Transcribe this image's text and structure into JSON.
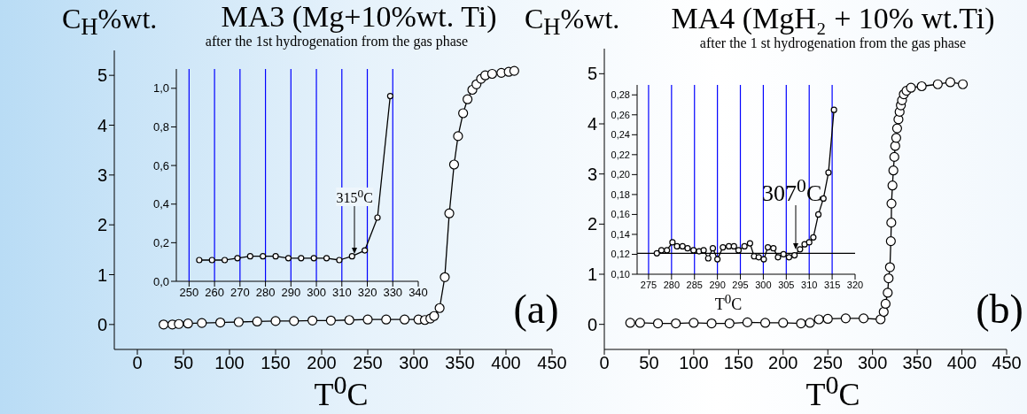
{
  "chart_data": [
    {
      "type": "line",
      "title": "MA3 (Mg+10%wt. Ti)",
      "subtitle": "after the 1st hydrogenation from the gas phase",
      "ylabel": "C$_{H}$%wt.",
      "xlabel": "T$^{0}$C",
      "annotations": [
        "(a)"
      ],
      "marker": "circle",
      "line_style": "solid",
      "series": [
        {
          "color": "#000000",
          "x": [
            28.5,
            38,
            45,
            55,
            70,
            90,
            110,
            130,
            150,
            170,
            190,
            210,
            230,
            250,
            270,
            290,
            305,
            312,
            318,
            322,
            328,
            333.6,
            338.5,
            343.7,
            348,
            353.5,
            358.3,
            363.5,
            368,
            373,
            377.5,
            385,
            395,
            403,
            409
          ],
          "values": [
            0,
            0,
            0.01,
            0.02,
            0.03,
            0.04,
            0.05,
            0.06,
            0.07,
            0.07,
            0.08,
            0.08,
            0.09,
            0.1,
            0.1,
            0.1,
            0.1,
            0.09,
            0.12,
            0.17,
            0.33,
            0.95,
            2.23,
            3.21,
            3.78,
            4.24,
            4.52,
            4.71,
            4.82,
            4.93,
            5.0,
            5.03,
            5.05,
            5.07,
            5.09
          ]
        }
      ],
      "xlim": [
        -25,
        450
      ],
      "xticks": [
        0,
        50,
        100,
        150,
        200,
        250,
        300,
        350,
        400,
        450
      ],
      "ylim": [
        -0.5,
        5.5
      ],
      "yticks": [
        0,
        1,
        2,
        3,
        4,
        5
      ]
    },
    {
      "type": "line",
      "annotations": [
        {
          "text": "315$^{0}$C",
          "x": 315,
          "y": 0.14
        }
      ],
      "marker": "circle",
      "line_style": "solid",
      "series": [
        {
          "color": "#000000",
          "x": [
            254,
            259,
            264,
            269,
            274,
            279,
            284,
            289,
            294,
            299,
            304,
            309,
            314,
            319,
            324,
            329
          ],
          "values": [
            0.11,
            0.11,
            0.11,
            0.12,
            0.13,
            0.13,
            0.13,
            0.12,
            0.12,
            0.12,
            0.12,
            0.11,
            0.13,
            0.16,
            0.33,
            0.96
          ]
        }
      ],
      "xlim": [
        245,
        340
      ],
      "xticks": [
        250,
        260,
        270,
        280,
        290,
        300,
        310,
        320,
        330,
        340
      ],
      "ylim": [
        0,
        1.1
      ],
      "yticks": [
        {
          "value": 0,
          "label": "0,0"
        },
        {
          "value": 0.2,
          "label": "0,2"
        },
        {
          "value": 0.4,
          "label": "0,4"
        },
        {
          "value": 0.6,
          "label": "0,6"
        },
        {
          "value": 0.8,
          "label": "0,8"
        },
        {
          "value": 1,
          "label": "1,0"
        }
      ],
      "ref_lines": [
        {
          "axis": "x",
          "value": 250,
          "color": "#0000ff"
        },
        {
          "axis": "x",
          "value": 260,
          "color": "#0000ff"
        },
        {
          "axis": "x",
          "value": 270,
          "color": "#0000ff"
        },
        {
          "axis": "x",
          "value": 280,
          "color": "#0000ff"
        },
        {
          "axis": "x",
          "value": 290,
          "color": "#0000ff"
        },
        {
          "axis": "x",
          "value": 300,
          "color": "#0000ff"
        },
        {
          "axis": "x",
          "value": 310,
          "color": "#0000ff"
        },
        {
          "axis": "x",
          "value": 320,
          "color": "#0000ff"
        },
        {
          "axis": "x",
          "value": 330,
          "color": "#0000ff"
        }
      ]
    },
    {
      "type": "line",
      "title": "MA4 (MgH₂ + 10% wt.Ti)",
      "subtitle": "after the 1 st hydrogenation from the gas phase",
      "ylabel": "C$_{H}$%wt.",
      "xlabel": "T$^{0}$C",
      "annotations": [
        "(b)"
      ],
      "marker": "circle",
      "line_style": "solid",
      "series": [
        {
          "color": "#000000",
          "x": [
            29,
            40,
            60,
            80,
            100,
            120,
            140,
            160,
            180,
            200,
            220,
            230,
            240,
            250,
            270,
            290,
            309,
            312.5,
            314.6,
            317,
            318,
            319.5,
            320.5,
            321,
            321.2,
            322.3,
            323.3,
            324.4,
            325.4,
            326.5,
            327.5,
            329,
            330.3,
            331.7,
            333,
            335,
            338,
            343,
            355,
            373,
            387,
            401
          ],
          "values": [
            0.03,
            0.03,
            0.02,
            0.02,
            0.03,
            0.02,
            0.02,
            0.04,
            0.03,
            0.03,
            0.02,
            0.03,
            0.1,
            0.11,
            0.12,
            0.12,
            0.1,
            0.25,
            0.41,
            0.63,
            0.92,
            1.14,
            1.66,
            2.03,
            2.41,
            2.77,
            3.07,
            3.34,
            3.56,
            3.72,
            3.91,
            4.09,
            4.24,
            4.37,
            4.47,
            4.59,
            4.66,
            4.72,
            4.75,
            4.79,
            4.83,
            4.79
          ]
        }
      ],
      "xlim": [
        0,
        450
      ],
      "xticks": [
        0,
        50,
        100,
        150,
        200,
        250,
        300,
        350,
        400,
        450
      ],
      "ylim": [
        -0.5,
        5.5
      ],
      "yticks": [
        0,
        1,
        2,
        3,
        4,
        5
      ]
    },
    {
      "type": "line",
      "xlabel": "T$^{0}$C",
      "annotations": [
        {
          "text": "307$^{0}$C",
          "x": 307,
          "y": 0.125
        }
      ],
      "marker": "circle",
      "line_style": "solid",
      "series": [
        {
          "color": "#000000",
          "x": [
            276.8,
            277.8,
            279,
            280.2,
            281.2,
            282.4,
            283.5,
            284.8,
            286,
            287,
            288,
            289,
            290,
            291.2,
            292.5,
            293.6,
            294.6,
            295.9,
            297.1,
            298,
            299,
            300.1,
            301,
            302.2,
            303.2,
            304.4,
            305.6,
            306.8,
            308,
            309,
            310,
            310.9,
            312,
            313.1,
            314.2,
            315.4
          ],
          "values": [
            0.121,
            0.124,
            0.124,
            0.132,
            0.128,
            0.128,
            0.126,
            0.124,
            0.123,
            0.124,
            0.116,
            0.126,
            0.115,
            0.127,
            0.128,
            0.128,
            0.124,
            0.128,
            0.131,
            0.118,
            0.117,
            0.115,
            0.127,
            0.126,
            0.117,
            0.12,
            0.117,
            0.119,
            0.125,
            0.13,
            0.132,
            0.137,
            0.16,
            0.176,
            0.202,
            0.265
          ]
        }
      ],
      "xlim": [
        272.5,
        320
      ],
      "xticks": [
        275,
        280,
        285,
        290,
        295,
        300,
        305,
        310,
        315,
        320
      ],
      "ylim": [
        0.1,
        0.29
      ],
      "yticks": [
        {
          "value": 0.1,
          "label": "0,10"
        },
        {
          "value": 0.12,
          "label": "0,12"
        },
        {
          "value": 0.14,
          "label": "0,14"
        },
        {
          "value": 0.16,
          "label": "0,16"
        },
        {
          "value": 0.18,
          "label": "0,18"
        },
        {
          "value": 0.2,
          "label": "0,20"
        },
        {
          "value": 0.22,
          "label": "0,22"
        },
        {
          "value": 0.24,
          "label": "0,24"
        },
        {
          "value": 0.26,
          "label": "0,26"
        },
        {
          "value": 0.28,
          "label": "0,28"
        }
      ],
      "ref_lines": [
        {
          "axis": "x",
          "value": 275,
          "color": "#0000ff"
        },
        {
          "axis": "x",
          "value": 280,
          "color": "#0000ff"
        },
        {
          "axis": "x",
          "value": 285,
          "color": "#0000ff"
        },
        {
          "axis": "x",
          "value": 290,
          "color": "#0000ff"
        },
        {
          "axis": "x",
          "value": 295,
          "color": "#0000ff"
        },
        {
          "axis": "x",
          "value": 300,
          "color": "#0000ff"
        },
        {
          "axis": "x",
          "value": 305,
          "color": "#0000ff"
        },
        {
          "axis": "x",
          "value": 310,
          "color": "#0000ff"
        },
        {
          "axis": "x",
          "value": 315,
          "color": "#0000ff"
        },
        {
          "axis": "y",
          "value": 0.121,
          "color": "#000000"
        }
      ]
    }
  ]
}
